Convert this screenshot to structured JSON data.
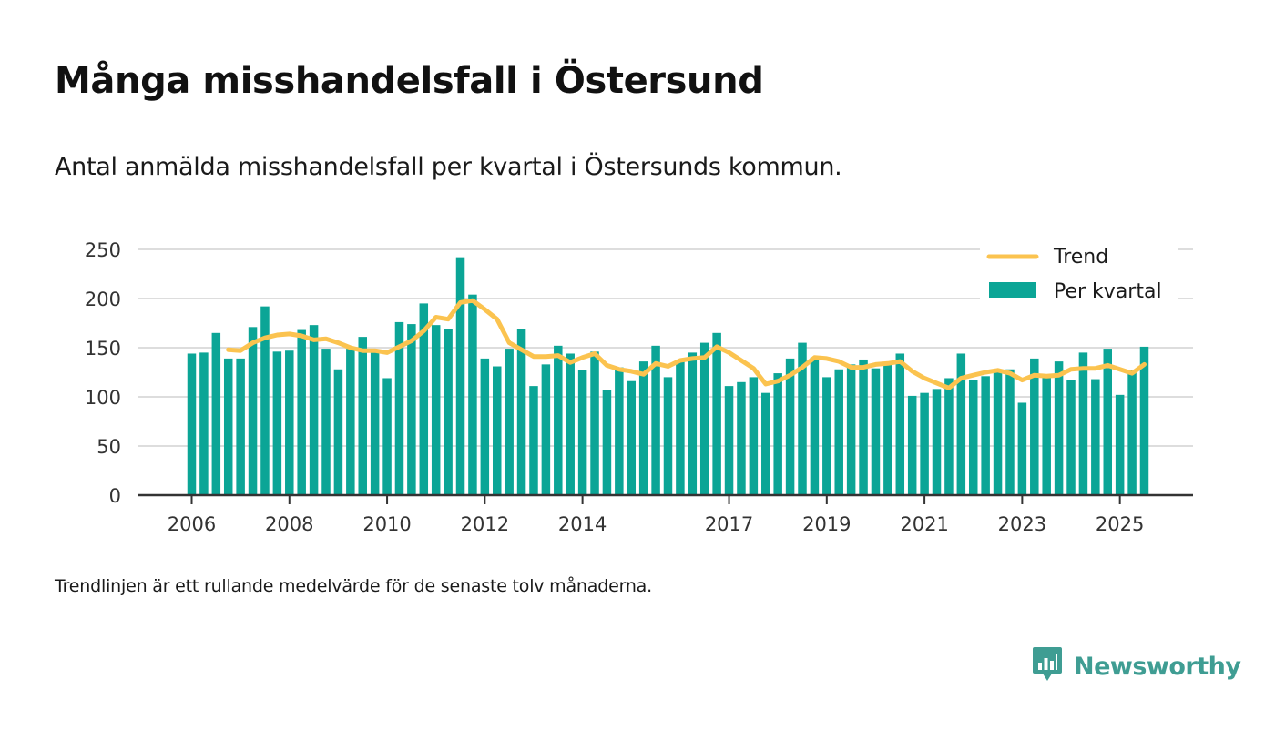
{
  "title": "Många misshandelsfall i Östersund",
  "subtitle": "Antal anmälda misshandelsfall per kvartal i Östersunds kommun.",
  "note": "Trendlinjen är ett rullande medelvärde för de senaste tolv månaderna.",
  "brand": {
    "name": "Newsworthy",
    "icon": "newsworthy-logo-icon",
    "color": "#3f9d93"
  },
  "colors": {
    "bar": "#0ba596",
    "trend": "#fbc34f",
    "grid": "#dddddd",
    "axis": "#333333"
  },
  "chart_data": {
    "type": "bar",
    "title": "",
    "xlabel": "",
    "ylabel": "",
    "ylim": [
      0,
      250
    ],
    "yticks": [
      0,
      50,
      100,
      150,
      200,
      250
    ],
    "xticks": [
      "2006",
      "2008",
      "2010",
      "2012",
      "2014",
      "2017",
      "2019",
      "2021",
      "2023",
      "2025"
    ],
    "first_quarter": "2006 Q1",
    "grid": true,
    "legend_position": "top-right",
    "series": [
      {
        "name": "Per kvartal",
        "type": "bar",
        "values": [
          144,
          145,
          165,
          139,
          139,
          171,
          192,
          146,
          147,
          168,
          173,
          149,
          128,
          149,
          161,
          148,
          119,
          176,
          174,
          195,
          173,
          169,
          242,
          204,
          139,
          131,
          149,
          169,
          111,
          133,
          152,
          144,
          127,
          146,
          107,
          130,
          116,
          136,
          152,
          120,
          137,
          145,
          155,
          165,
          111,
          115,
          120,
          104,
          124,
          139,
          155,
          140,
          120,
          128,
          133,
          138,
          129,
          135,
          144,
          101,
          104,
          108,
          119,
          144,
          117,
          121,
          126,
          128,
          94,
          139,
          121,
          136,
          117,
          145,
          118,
          149,
          102,
          127,
          151
        ]
      },
      {
        "name": "Trend",
        "type": "line",
        "values": [
          null,
          null,
          null,
          148,
          147,
          155,
          160,
          163,
          164,
          162,
          158,
          159,
          155,
          150,
          147,
          147,
          145,
          151,
          157,
          167,
          181,
          179,
          196,
          198,
          189,
          179,
          155,
          148,
          141,
          141,
          142,
          135,
          140,
          144,
          132,
          128,
          126,
          123,
          134,
          131,
          137,
          139,
          140,
          151,
          145,
          137,
          129,
          113,
          116,
          122,
          130,
          140,
          139,
          136,
          130,
          130,
          133,
          134,
          136,
          126,
          119,
          114,
          109,
          119,
          122,
          125,
          127,
          124,
          117,
          122,
          121,
          122,
          128,
          129,
          129,
          132,
          128,
          124,
          133
        ]
      }
    ]
  }
}
